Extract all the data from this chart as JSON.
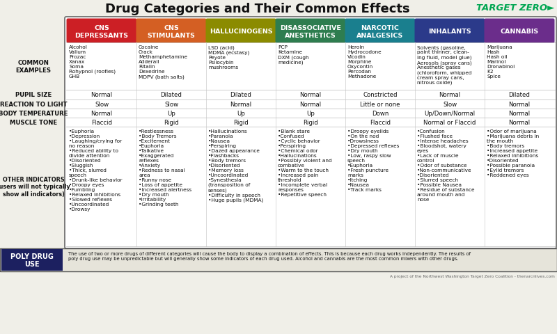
{
  "title": "Drug Categories and Their Common Effects",
  "title_fontsize": 13,
  "logo_text": "TARGET ZERO►",
  "logo_color": "#00a651",
  "bg_color": "#f0efe8",
  "white": "#ffffff",
  "cat_colors": [
    "#cc1f25",
    "#d45f23",
    "#8b8b00",
    "#2e7d4f",
    "#1a7f8e",
    "#2b3a8a",
    "#6b2d8b"
  ],
  "cat_names": [
    "CNS\nDEPRESSANTS",
    "CNS\nSTIMULANTS",
    "HALLUCINOGENS",
    "DISASSOCIATIVE\nANESTHETICS",
    "NARCOTIC\nANALGESICS",
    "INHALANTS",
    "CANNABIS"
  ],
  "row_labels": [
    "COMMON\nEXAMPLES",
    "PUPIL SIZE",
    "REACTION TO LIGHT",
    "BODY TEMPERATURE",
    "MUSCLE TONE",
    "OTHER INDICATORS\n(users will not typically\nshow all indicators)"
  ],
  "common_examples": [
    "Alcohol\nValium\nProzac\nXanax\nSoma\nRohypnol (roofies)\nGHB",
    "Cocaine\nCrack\nMethamphetamine\nAdderall\nRitalin\nDexedrine\nMDPV (bath salts)",
    "LSD (acid)\nMDMA (ecstasy)\nPeyote\nPsilocybin\nmushrooms",
    "PCP\nKetamine\nDXM (cough\nmedicine)",
    "Heroin\nHydrocodone\nVicodin\nMorphine\nOxycontin\nPercodan\nMethadone",
    "Solvents (gasoline,\npaint thinner, clean-\ning fluid, model glue)\nAerosols (spray cans)\nAnesthetic gases\n(chloroform, whipped\ncream spray cans,\nnitrous oxide)",
    "Marijuana\nHash\nHash oil\nMarinol\nDronabinol\nK2\nSpice"
  ],
  "pupil_size": [
    "Normal",
    "Dilated",
    "Dilated",
    "Normal",
    "Constricted",
    "Normal",
    "Dilated"
  ],
  "reaction_to_light": [
    "Slow",
    "Slow",
    "Normal",
    "Normal",
    "Little or none",
    "Slow",
    "Normal"
  ],
  "body_temperature": [
    "Normal",
    "Up",
    "Up",
    "Up",
    "Down",
    "Up/Down/Normal",
    "Normal"
  ],
  "muscle_tone": [
    "Flaccid",
    "Rigid",
    "Rigid",
    "Rigid",
    "Flaccid",
    "Normal or Flaccid",
    "Normal"
  ],
  "other_indicators": [
    "•Euphoria\n•Depression\n•Laughing/crying for\nno reason\n•Reduced ability to\ndivide attention\n•Disoriented\n•Sluggish\n•Thick, slurred\nspeech\n•Drunk-like behavior\n•Droopy eyes\n•Fumbling\n•Relaxed inhibitions\n•Slowed reflexes\n•Uncoordinated\n•Drowsy",
    "•Restlessness\n•Body Tremors\n•Excitement\n•Euphoria\n•Talkative\n•Exaggerated\nreflexes\n•Anxiety\n•Redness to nasal\narea\n•Runny nose\n•Loss of appetite\n•Increased alertness\n•Dry mouth\n•Irritability\n•Grinding teeth",
    "•Hallucinations\n•Paranoia\n•Nausea\n•Perspiring\n•Dazed appearance\n•Flashbacks\n•Body tremors\n•Disoriented\n•Memory loss\n•Uncoordinated\n•Synesthesia\n(transposition of\nsenses)\n•Difficulty in speech\n•Huge pupils (MDMA)",
    "•Blank stare\n•Confused\n•Cyclic behavior\n•Perspiring\n•Chemical odor\n•Hallucinations\n•Possibly violent and\ncombative\n•Warm to the touch\n•Increased pain\nthreshold\n•Incomplete verbal\nresponses\n•Repetitive speech",
    "•Droopy eyelids\n•On the nod\n•Drowsiness\n•Depressed reflexes\n•Dry mouth\n•Low, raspy slow\nspeech\n•Euphoria\n•Fresh puncture\nmarks\n•Itching\n•Nausea\n•Track marks",
    "•Confusion\n•Flushed face\n•Intense headaches\n•Bloodshot, watery\neyes\n•Lack of muscle\ncontrol\n•Odor of substance\n•Non-communicative\n•Disoriented\n•Slurred speech\n•Possible Nausea\n•Residue of substance\naround mouth and\nnose",
    "•Odor of marijuana\n•Marijuana debris in\nthe mouth\n•Body tremors\n•Increased appetite\n•Relaxed inhibitions\n•Disoriented\n•Possible paranoia\n•Eylid tremors\n•Reddened eyes"
  ],
  "poly_drug_label": "POLY DRUG\nUSE",
  "poly_drug_text": "The use of two or more drugs of different categories will cause the body to display a combination of effects. This is because each drug works independently. The results of\npoly drug use may be unpredictable but will generally show some indicators of each drug used. Alcohol and cannabis are the most common mixers with other drugs.",
  "footer_text": "A project of the Northwest Washington Target Zero Coalition - thenarcnlives.com"
}
